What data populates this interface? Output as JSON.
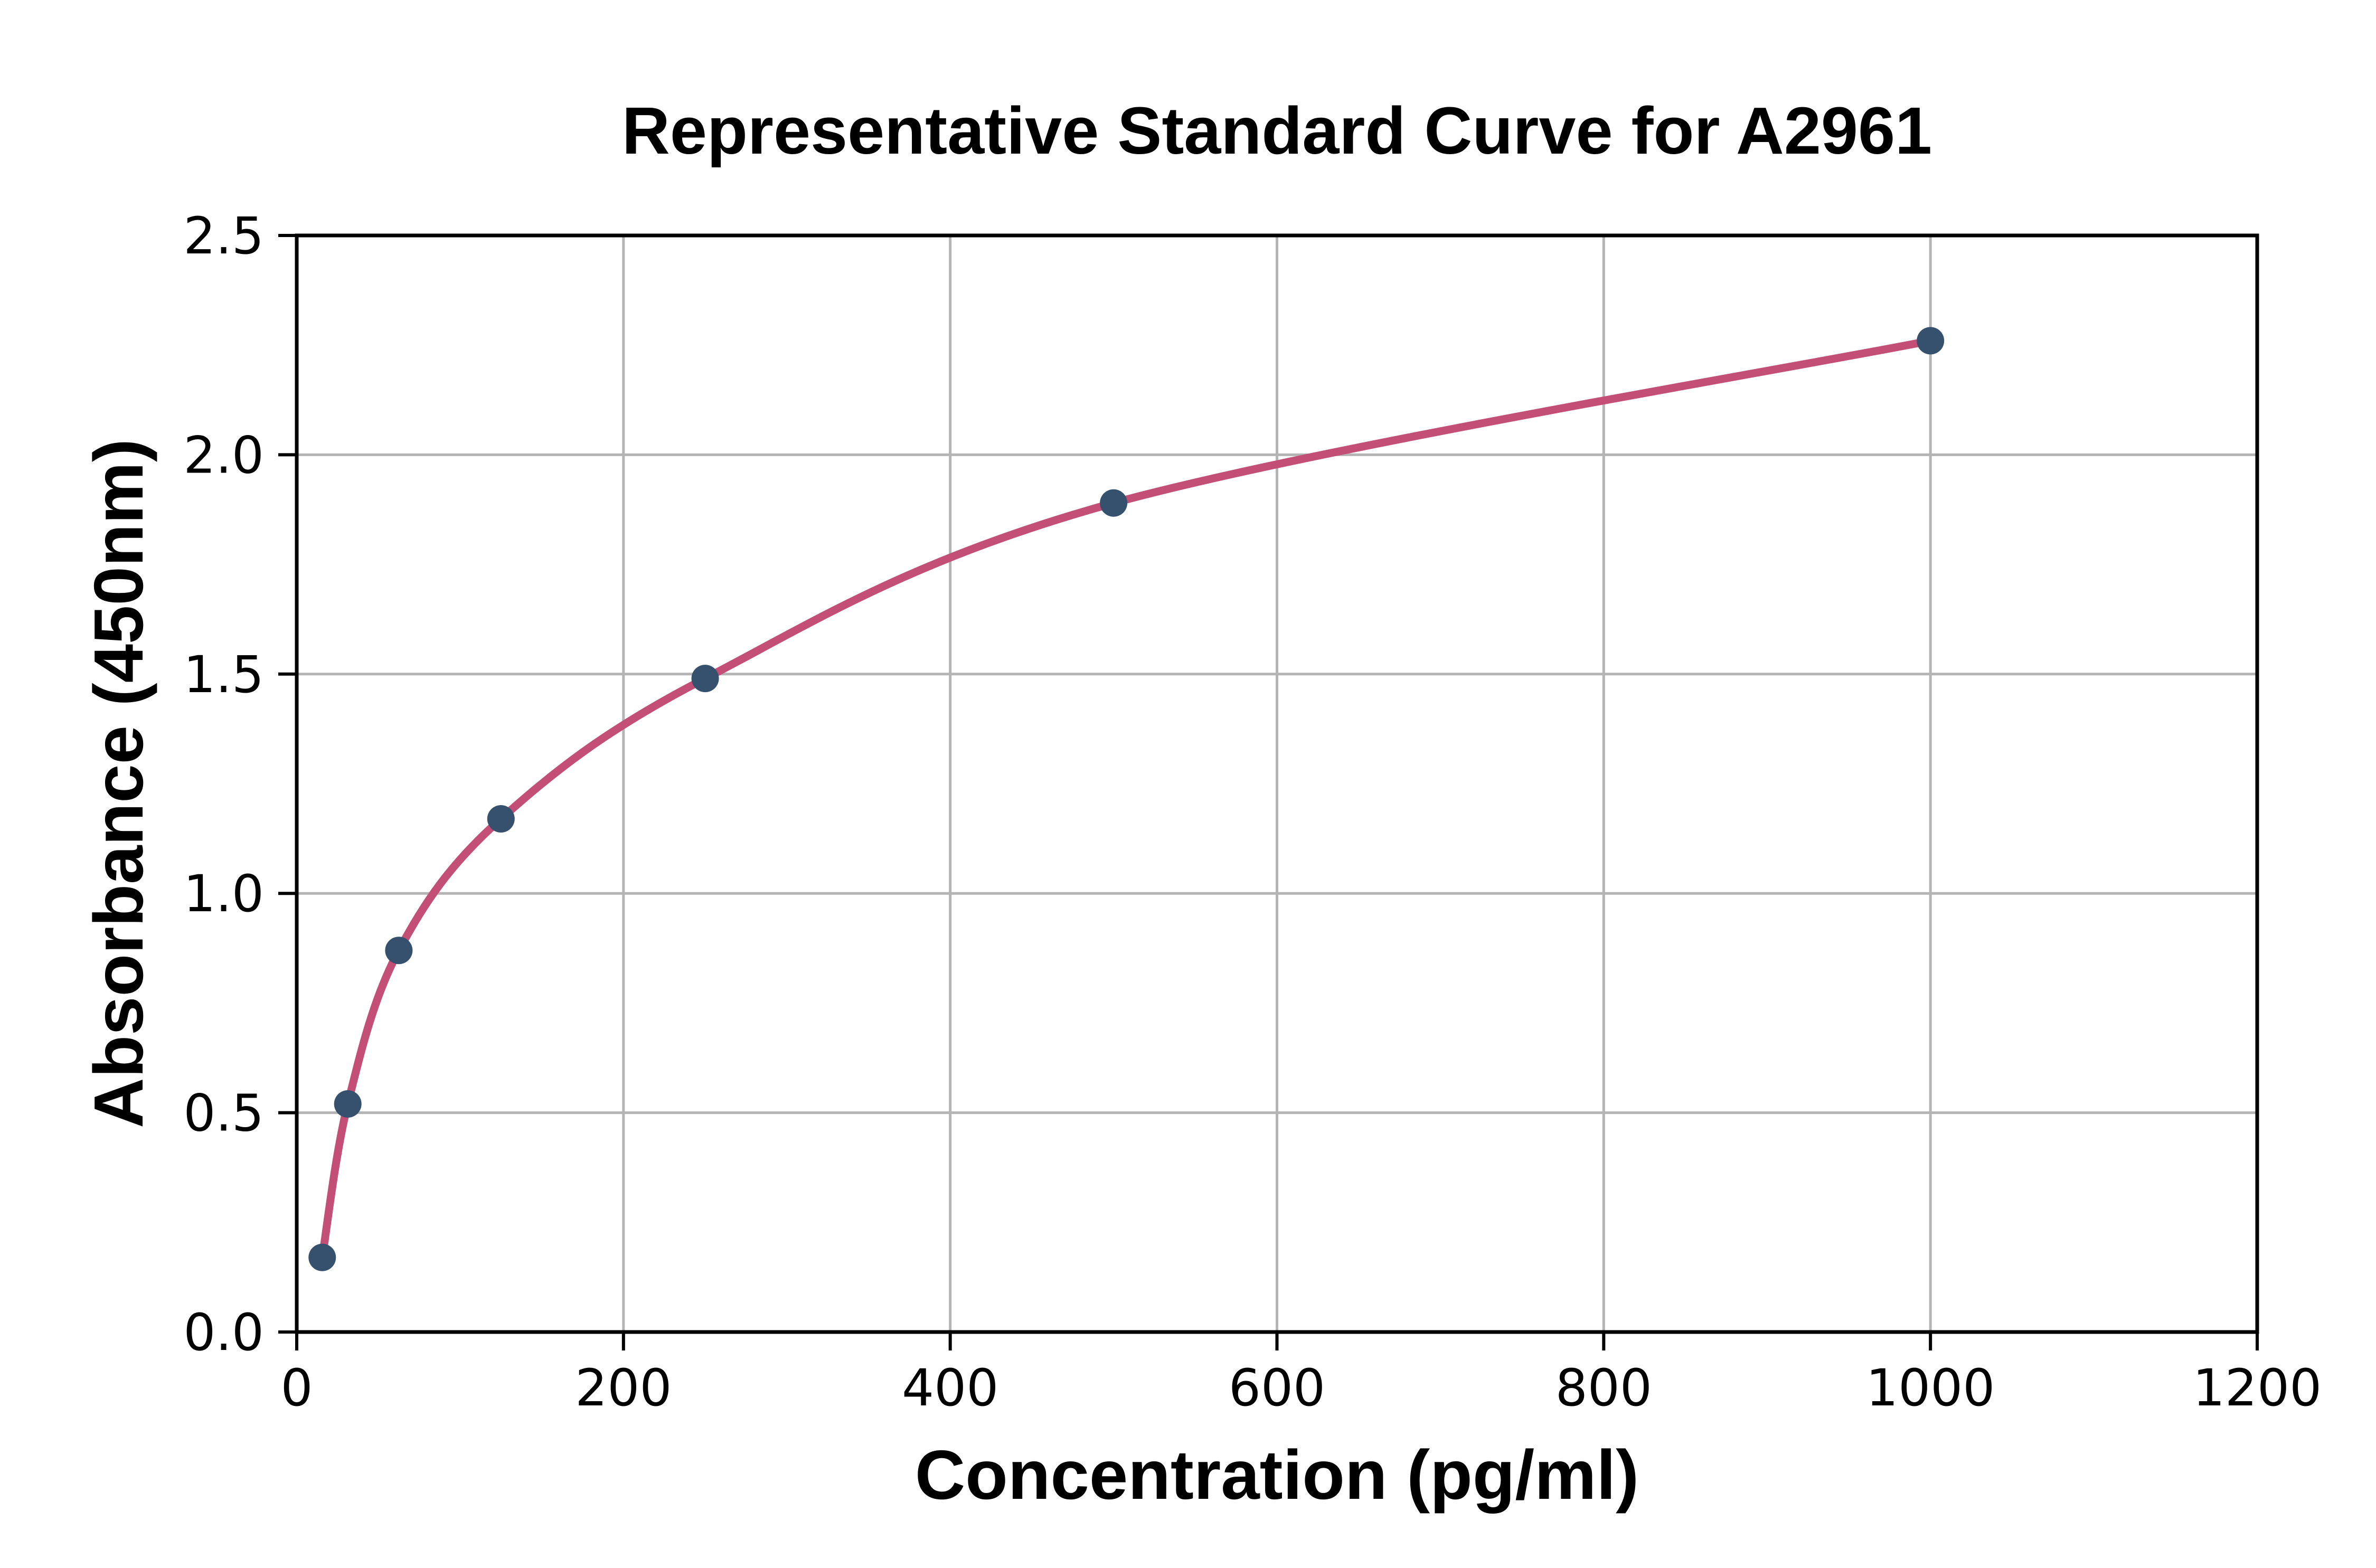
{
  "chart_data": {
    "type": "scatter",
    "title": "Representative Standard Curve for A2961",
    "xlabel": "Concentration (pg/ml)",
    "ylabel": "Absorbance (450nm)",
    "x": [
      15.6,
      31.25,
      62.5,
      125,
      250,
      500,
      1000
    ],
    "y": [
      0.17,
      0.52,
      0.87,
      1.17,
      1.49,
      1.89,
      2.26
    ],
    "xlim": [
      0,
      1200
    ],
    "ylim": [
      0,
      2.5
    ],
    "x_ticks": [
      0,
      200,
      400,
      600,
      800,
      1000,
      1200
    ],
    "y_ticks": [
      0.0,
      0.5,
      1.0,
      1.5,
      2.0,
      2.5
    ],
    "y_tick_decimals": 1,
    "grid": true,
    "legend": "none",
    "colors": {
      "curve": "#c34f76",
      "marker": "#35516d",
      "grid": "#b4b4b4",
      "axes": "#000000",
      "background": "#ffffff"
    },
    "marker_radius": 26,
    "curve_width": 15
  }
}
